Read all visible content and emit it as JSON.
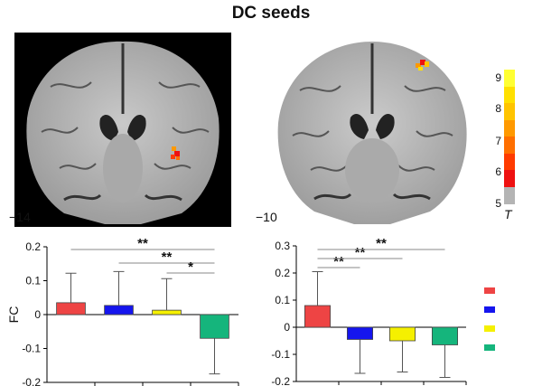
{
  "figure": {
    "title": "DC seeds",
    "brain_left_label": "−14",
    "brain_right_label": "−10",
    "colorbar": {
      "ticks": [
        "9",
        "8",
        "7",
        "6",
        "5"
      ],
      "unit": "T",
      "colors": [
        "#ffff33",
        "#ffe000",
        "#ffc400",
        "#ff9900",
        "#ff6f00",
        "#ff3b00",
        "#ee1111",
        "#b4b4b4"
      ]
    },
    "legend_colors": [
      "#ee4444",
      "#1515ee",
      "#f5f000",
      "#15b57c"
    ]
  },
  "chart_data": [
    {
      "type": "bar",
      "ylabel": "FC",
      "ylim": [
        -0.2,
        0.2
      ],
      "yticks": [
        "0.2",
        "0.1",
        "0",
        "-0.1",
        "-0.2"
      ],
      "categories": [
        "",
        "",
        "",
        ""
      ],
      "values": [
        0.035,
        0.027,
        0.013,
        -0.07
      ],
      "error_bars": [
        0.087,
        0.1,
        0.093,
        0.105
      ],
      "colors": [
        "#ee4444",
        "#1515ee",
        "#f5f000",
        "#15b57c"
      ],
      "significance": [
        {
          "from": 0,
          "to": 3,
          "label": "**"
        },
        {
          "from": 1,
          "to": 3,
          "label": "**"
        },
        {
          "from": 2,
          "to": 3,
          "label": "*"
        }
      ]
    },
    {
      "type": "bar",
      "ylabel": "",
      "ylim": [
        -0.2,
        0.3
      ],
      "yticks": [
        "0.3",
        "0.2",
        "0.1",
        "0",
        "-0.1",
        "-0.2"
      ],
      "categories": [
        "",
        "",
        "",
        ""
      ],
      "values": [
        0.08,
        -0.045,
        -0.05,
        -0.065
      ],
      "error_bars": [
        0.125,
        0.125,
        0.115,
        0.12
      ],
      "colors": [
        "#ee4444",
        "#1515ee",
        "#f5f000",
        "#15b57c"
      ],
      "significance": [
        {
          "from": 0,
          "to": 1,
          "label": "**"
        },
        {
          "from": 0,
          "to": 2,
          "label": "**"
        },
        {
          "from": 0,
          "to": 3,
          "label": "**"
        }
      ]
    }
  ]
}
